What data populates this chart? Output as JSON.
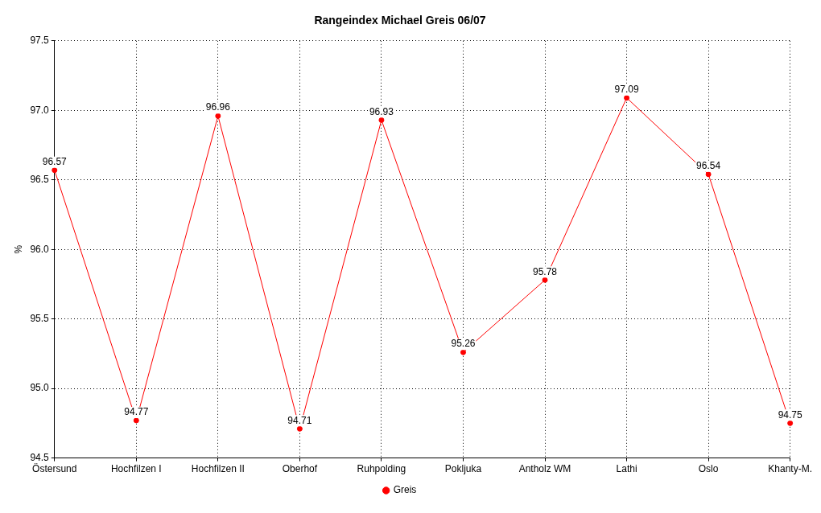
{
  "chart_data": {
    "type": "line",
    "title": "Rangeindex Michael Greis 06/07",
    "ylabel": "%",
    "categories": [
      "Östersund",
      "Hochfilzen I",
      "Hochfilzen II",
      "Oberhof",
      "Ruhpolding",
      "Pokljuka",
      "Antholz WM",
      "Lathi",
      "Oslo",
      "Khanty-M."
    ],
    "series": [
      {
        "name": "Greis",
        "color": "#ff0000",
        "values": [
          96.57,
          94.77,
          96.96,
          94.71,
          96.93,
          95.26,
          95.78,
          97.09,
          96.54,
          94.75
        ]
      }
    ],
    "ylim": [
      94.5,
      97.5
    ],
    "yticks": [
      {
        "value": 94.5,
        "label": "94.5"
      },
      {
        "value": 95,
        "label": "95.0"
      },
      {
        "value": 95.5,
        "label": "95.5"
      },
      {
        "value": 96,
        "label": "96.0"
      },
      {
        "value": 96.5,
        "label": "96.5"
      },
      {
        "value": 97,
        "label": "97.0"
      },
      {
        "value": 97.5,
        "label": "97.5"
      }
    ],
    "grid": true,
    "legend": "bottom",
    "marker": "circle",
    "line_style": "solid",
    "data_labels": true
  }
}
